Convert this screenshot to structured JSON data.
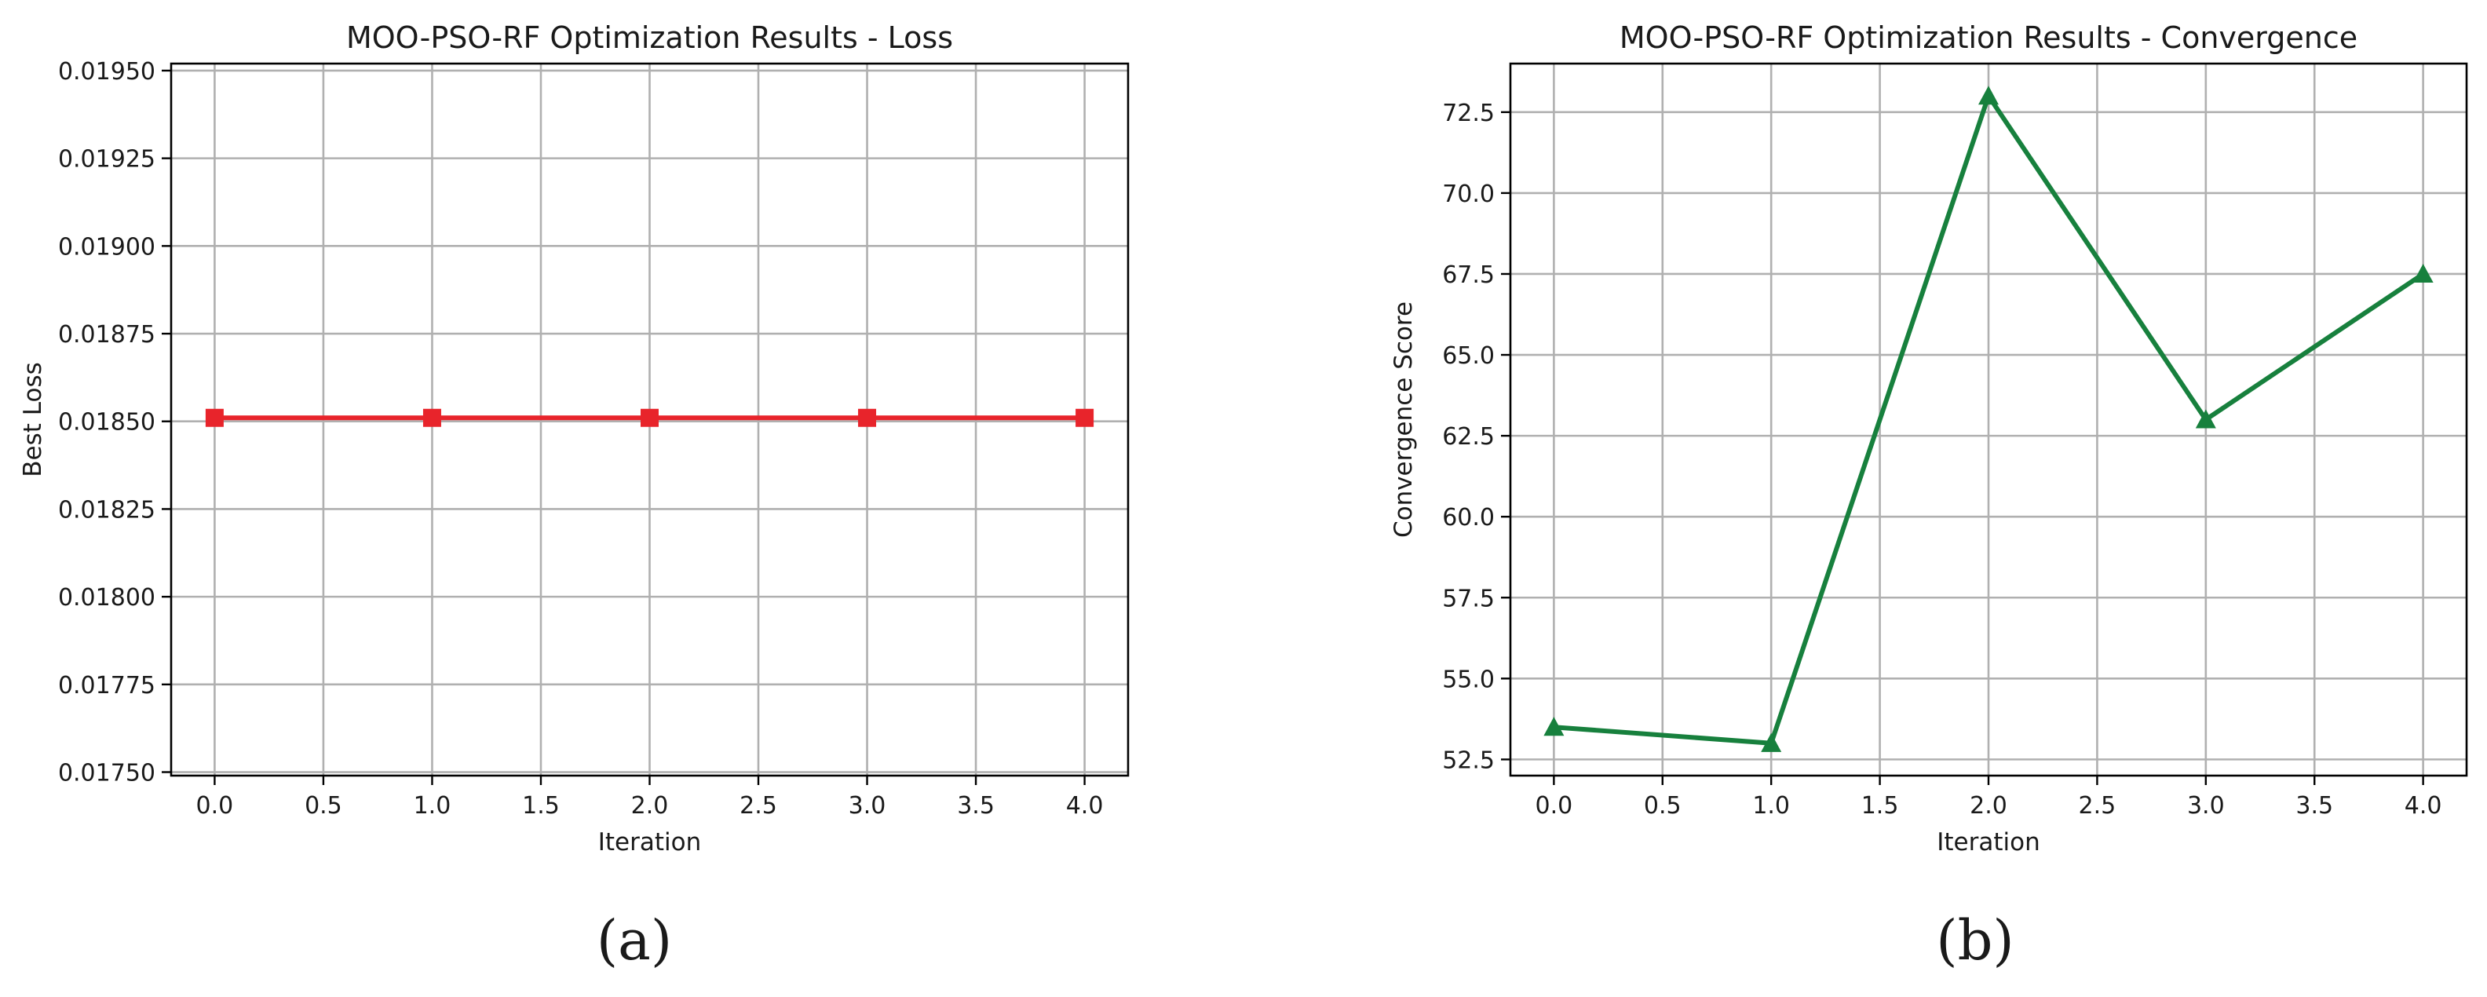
{
  "chart_data": [
    {
      "type": "line",
      "title": "MOO-PSO-RF Optimization Results - Loss",
      "xlabel": "Iteration",
      "ylabel": "Best Loss",
      "xlim": [
        -0.2,
        4.2
      ],
      "ylim": [
        0.01749,
        0.01952
      ],
      "xticks": [
        "0.0",
        "0.5",
        "1.0",
        "1.5",
        "2.0",
        "2.5",
        "3.0",
        "3.5",
        "4.0"
      ],
      "yticks": [
        "0.01750",
        "0.01775",
        "0.01800",
        "0.01825",
        "0.01850",
        "0.01875",
        "0.01900",
        "0.01925",
        "0.01950"
      ],
      "grid": true,
      "marker": "square",
      "color": "#e8242b",
      "x": [
        0,
        1,
        2,
        3,
        4
      ],
      "y": [
        0.01851,
        0.01851,
        0.01851,
        0.01851,
        0.01851
      ],
      "panel_label": "(a)"
    },
    {
      "type": "line",
      "title": "MOO-PSO-RF Optimization Results - Convergence",
      "xlabel": "Iteration",
      "ylabel": "Convergence Score",
      "xlim": [
        -0.2,
        4.2
      ],
      "ylim": [
        52.0,
        74.0
      ],
      "xticks": [
        "0.0",
        "0.5",
        "1.0",
        "1.5",
        "2.0",
        "2.5",
        "3.0",
        "3.5",
        "4.0"
      ],
      "yticks": [
        "52.5",
        "55.0",
        "57.5",
        "60.0",
        "62.5",
        "65.0",
        "67.5",
        "70.0",
        "72.5"
      ],
      "grid": true,
      "marker": "triangle",
      "color": "#17803d",
      "x": [
        0,
        1,
        2,
        3,
        4
      ],
      "y": [
        53.5,
        53.0,
        73.0,
        63.0,
        67.5
      ],
      "panel_label": "(b)"
    }
  ]
}
